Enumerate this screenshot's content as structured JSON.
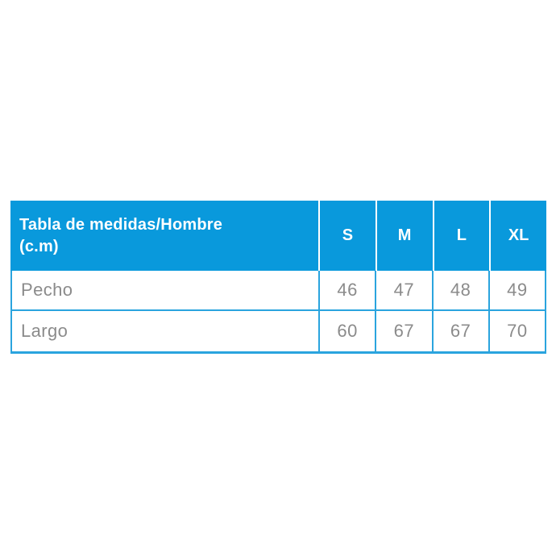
{
  "table": {
    "title_line1": "Tabla de medidas/Hombre",
    "title_line2": "(c.m)",
    "columns": [
      "S",
      "M",
      "L",
      "XL"
    ],
    "rows": [
      {
        "label": "Pecho",
        "values": [
          "46",
          "47",
          "48",
          "49"
        ]
      },
      {
        "label": "Largo",
        "values": [
          "60",
          "67",
          "67",
          "70"
        ]
      }
    ],
    "colors": {
      "header_bg": "#0999dc",
      "header_text": "#ffffff",
      "body_text": "#8b8b8b",
      "border": "#2aa4de"
    }
  }
}
